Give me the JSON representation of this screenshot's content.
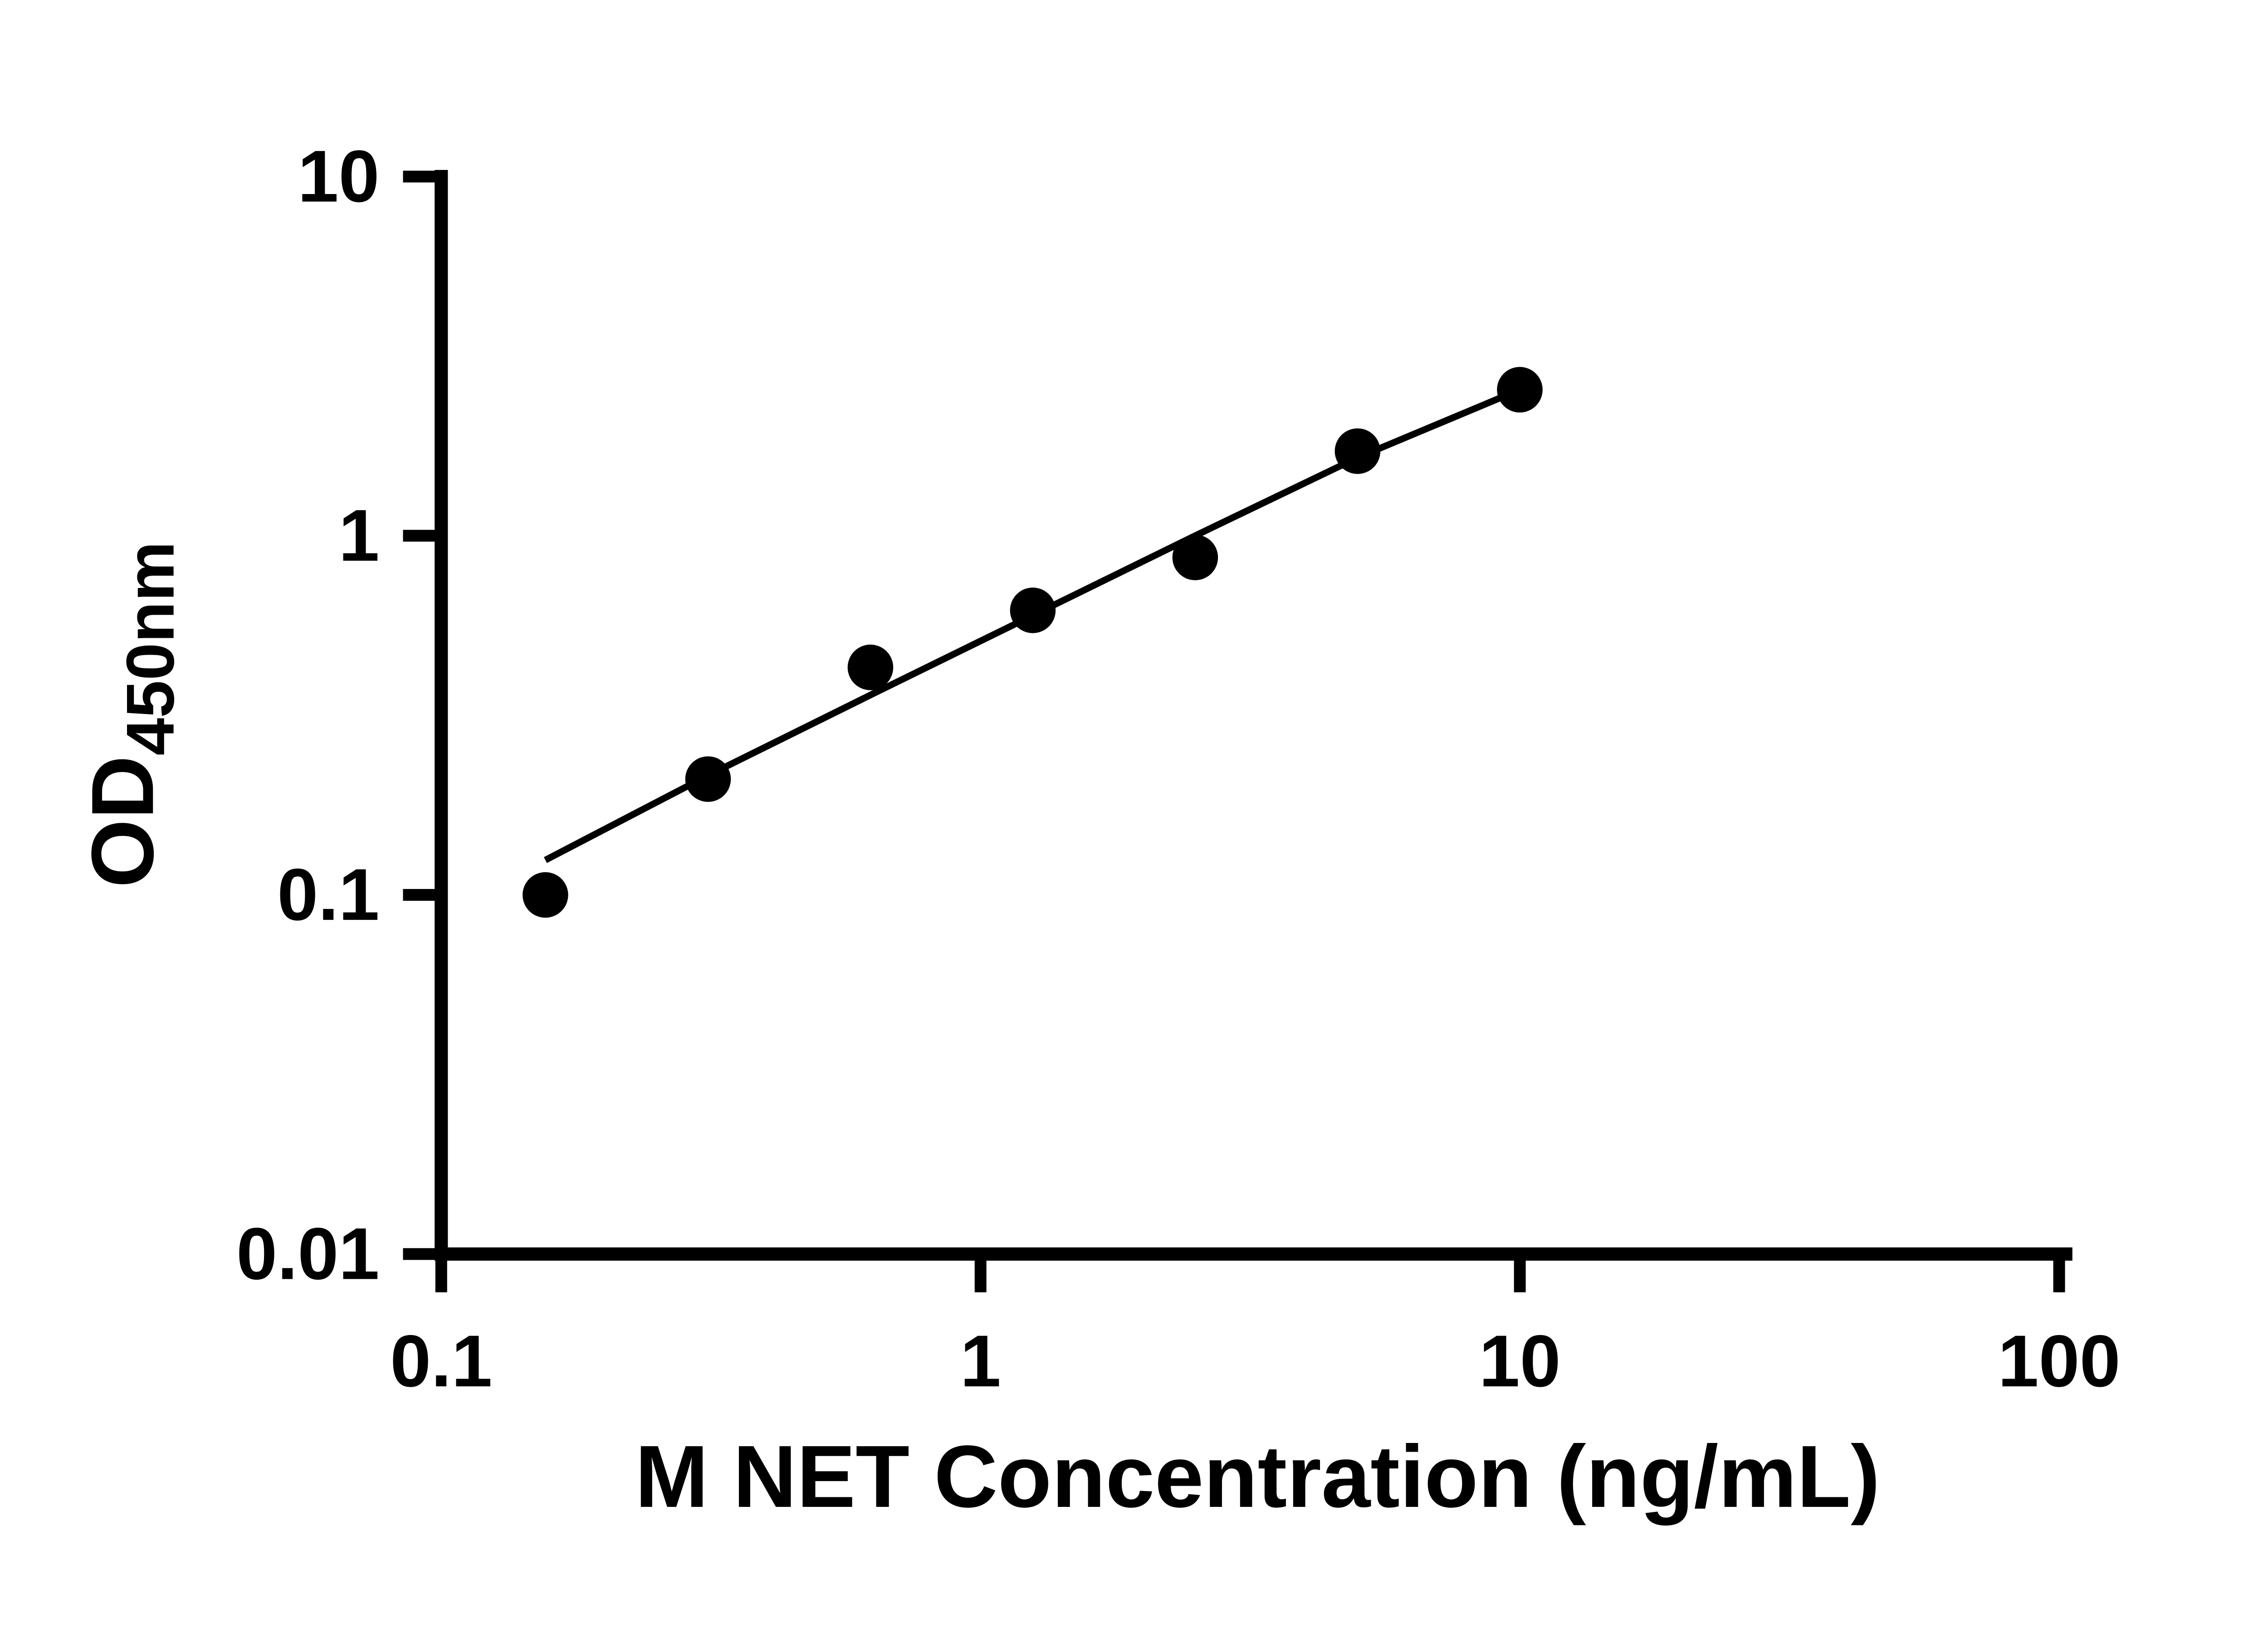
{
  "page": {
    "background_color": "#ffffff",
    "foreground_color": "#000000"
  },
  "chart_data": {
    "type": "scatter",
    "title": "",
    "xlabel": "M NET Concentration (ng/mL)",
    "ylabel_main": "OD",
    "ylabel_sub": "450nm",
    "x_scale": "log",
    "y_scale": "log",
    "xlim": [
      0.1,
      100
    ],
    "ylim": [
      0.01,
      10
    ],
    "x_ticks": [
      0.1,
      1,
      10,
      100
    ],
    "x_tick_labels": [
      "0.1",
      "1",
      "10",
      "100"
    ],
    "y_ticks": [
      0.01,
      0.1,
      1,
      10
    ],
    "y_tick_labels": [
      "0.01",
      "0.1",
      "1",
      "10"
    ],
    "grid": false,
    "legend": false,
    "series": [
      {
        "name": "standard-curve-points",
        "marker": "circle",
        "color": "#000000",
        "points": [
          [
            0.156,
            0.1
          ],
          [
            0.3125,
            0.21
          ],
          [
            0.625,
            0.43
          ],
          [
            1.25,
            0.62
          ],
          [
            2.5,
            0.87
          ],
          [
            5,
            1.72
          ],
          [
            10,
            2.55
          ]
        ]
      }
    ],
    "trendline": {
      "name": "fitted-curve",
      "color": "#000000",
      "points": [
        [
          0.156,
          0.125
        ],
        [
          0.3125,
          0.215
        ],
        [
          0.625,
          0.36
        ],
        [
          1.25,
          0.6
        ],
        [
          2.5,
          1.0
        ],
        [
          5,
          1.65
        ],
        [
          10,
          2.55
        ]
      ]
    }
  }
}
